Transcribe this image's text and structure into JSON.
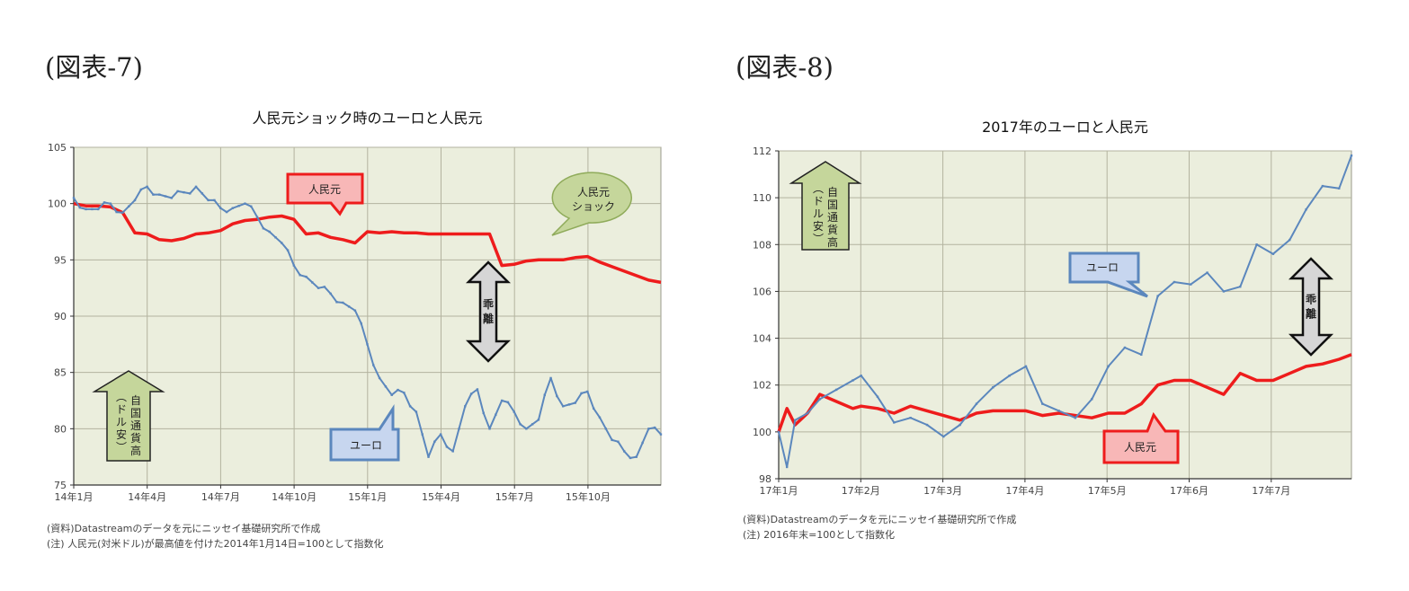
{
  "figures": [
    {
      "label": "(図表-7)",
      "notes": [
        "(資料)Datastreamのデータを元にニッセイ基礎研究所で作成",
        "(注)  人民元(対米ドル)が最高値を付けた2014年1月14日=100として指数化"
      ],
      "annotations": {
        "rmb_callout": "人民元",
        "euro_callout": "ユーロ",
        "shock_callout": [
          "人民元",
          "ショック"
        ],
        "divergence_arrow": [
          "乖",
          "離"
        ],
        "appreciation_arrow": [
          "自国通貨高",
          "(ドル安)"
        ]
      }
    },
    {
      "label": "(図表-8)",
      "notes": [
        "(資料)Datastreamのデータを元にニッセイ基礎研究所で作成",
        "(注)  2016年末=100として指数化"
      ],
      "annotations": {
        "rmb_callout": "人民元",
        "euro_callout": "ユーロ",
        "divergence_arrow": [
          "乖",
          "離"
        ],
        "appreciation_arrow": [
          "自国通貨高",
          "(ドル安)"
        ]
      }
    }
  ],
  "colors": {
    "plot_bg": "#ebeedd",
    "grid": "#b3b39f",
    "rmb": "#ee1c1c",
    "euro": "#5b87bd",
    "green_fill": "#c5d69b",
    "green_stroke": "#8fab5a",
    "gray_fill": "#d6d6d6"
  },
  "chart_data": [
    {
      "type": "line",
      "title": "人民元ショック時のユーロと人民元",
      "xlabel": "",
      "ylabel": "",
      "ylim": [
        75,
        105
      ],
      "yticks": [
        75,
        80,
        85,
        90,
        95,
        100,
        105
      ],
      "categories": [
        "14年1月",
        "14年4月",
        "14年7月",
        "14年10月",
        "15年1月",
        "15年4月",
        "15年7月",
        "15年10月"
      ],
      "grid": true,
      "legend": "callouts",
      "x": [
        0,
        0.5,
        1,
        1.5,
        2,
        2.5,
        3,
        3.5,
        4,
        4.5,
        5,
        5.5,
        6,
        6.5,
        7,
        7.5,
        8,
        8.5,
        9,
        9.5,
        10,
        10.5,
        11,
        11.5,
        12,
        12.5,
        13,
        13.5,
        14,
        14.5,
        15,
        15.5,
        16,
        16.5,
        17,
        17.5,
        18,
        18.5,
        19,
        19.5,
        20,
        20.5,
        21,
        21.5,
        22,
        22.5,
        23,
        23.5,
        24
      ],
      "series": [
        {
          "name": "人民元",
          "values": [
            100,
            99.8,
            99.8,
            99.7,
            99.2,
            97.4,
            97.3,
            96.8,
            96.7,
            96.9,
            97.3,
            97.4,
            97.6,
            98.2,
            98.5,
            98.6,
            98.8,
            98.9,
            98.6,
            97.3,
            97.4,
            97.0,
            96.8,
            96.5,
            97.5,
            97.4,
            97.5,
            97.4,
            97.4,
            97.3,
            97.3,
            97.3,
            97.3,
            97.3,
            97.3,
            94.5,
            94.6,
            94.9,
            95.0,
            95.0,
            95.0,
            95.2,
            95.3,
            94.8,
            94.4,
            94.0,
            93.6,
            93.2,
            93.0
          ]
        },
        {
          "name": "ユーロ",
          "values": [
            100.5,
            99.5,
            99.5,
            100.0,
            99.2,
            100.3,
            101.5,
            100.8,
            100.5,
            101.0,
            101.5,
            100.3,
            99.6,
            99.6,
            100.0,
            98.8,
            97.5,
            96.5,
            94.5,
            93.5,
            92.5,
            92.0,
            91.2,
            90.5,
            87.5,
            84.5,
            83.0,
            83.2,
            81.5,
            77.5,
            79.5,
            78.0,
            82.0,
            83.5,
            80.0,
            82.5,
            81.5,
            80.0,
            80.8,
            84.5,
            82.0,
            82.3,
            83.3,
            81.0,
            79.0,
            78.0,
            77.5,
            80.0,
            79.5
          ]
        }
      ]
    },
    {
      "type": "line",
      "title": "2017年のユーロと人民元",
      "xlabel": "",
      "ylabel": "",
      "ylim": [
        98,
        112
      ],
      "yticks": [
        98,
        100,
        102,
        104,
        106,
        108,
        110,
        112
      ],
      "categories": [
        "17年1月",
        "17年2月",
        "17年3月",
        "17年4月",
        "17年5月",
        "17年6月",
        "17年7月"
      ],
      "grid": true,
      "legend": "callouts",
      "x": [
        0,
        0.1,
        0.2,
        0.35,
        0.5,
        0.7,
        0.9,
        1.0,
        1.2,
        1.4,
        1.6,
        1.8,
        2.0,
        2.2,
        2.4,
        2.6,
        2.8,
        3.0,
        3.2,
        3.4,
        3.6,
        3.8,
        4.0,
        4.2,
        4.4,
        4.6,
        4.8,
        5.0,
        5.2,
        5.4,
        5.6,
        5.8,
        6.0,
        6.2,
        6.4,
        6.6,
        6.8,
        6.95
      ],
      "series": [
        {
          "name": "人民元",
          "values": [
            100,
            101.0,
            100.3,
            100.8,
            101.6,
            101.3,
            101.0,
            101.1,
            101.0,
            100.8,
            101.1,
            100.9,
            100.7,
            100.5,
            100.8,
            100.9,
            100.9,
            100.9,
            100.7,
            100.8,
            100.7,
            100.6,
            100.8,
            100.8,
            101.2,
            102.0,
            102.2,
            102.2,
            101.9,
            101.6,
            102.5,
            102.2,
            102.2,
            102.5,
            102.8,
            102.9,
            103.1,
            103.3
          ]
        },
        {
          "name": "ユーロ",
          "values": [
            100,
            98.5,
            100.5,
            100.8,
            101.4,
            101.8,
            102.2,
            102.4,
            101.5,
            100.4,
            100.6,
            100.3,
            99.8,
            100.3,
            101.2,
            101.9,
            102.4,
            102.8,
            101.2,
            100.9,
            100.6,
            101.4,
            102.8,
            103.6,
            103.3,
            105.8,
            106.4,
            106.3,
            106.8,
            106.0,
            106.2,
            108.0,
            107.6,
            108.2,
            109.5,
            110.5,
            110.4,
            111.8
          ]
        }
      ]
    }
  ]
}
